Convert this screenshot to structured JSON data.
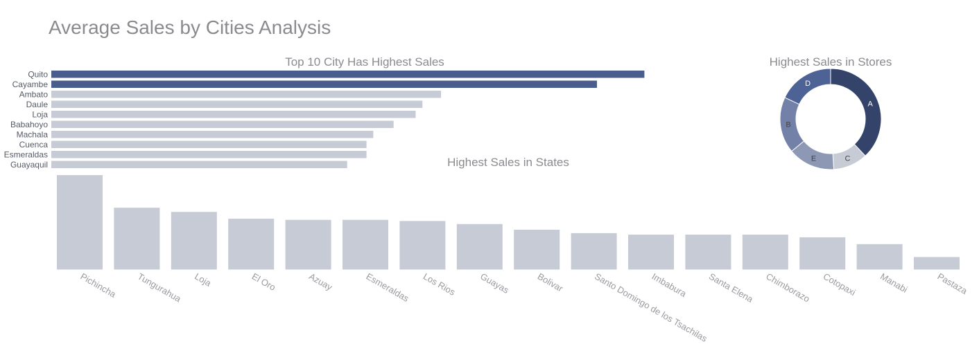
{
  "page": {
    "title": "Average Sales by Cities Analysis"
  },
  "chart_data": [
    {
      "type": "bar",
      "orientation": "horizontal",
      "title": "Top 10 City Has Highest Sales",
      "categories": [
        "Quito",
        "Cayambe",
        "Ambato",
        "Daule",
        "Loja",
        "Babahoyo",
        "Machala",
        "Cuenca",
        "Esmeraldas",
        "Guayaquil"
      ],
      "values": [
        1750,
        1610,
        1150,
        1095,
        1075,
        1010,
        950,
        930,
        930,
        873
      ],
      "xlim": [
        0,
        2500
      ],
      "highlight_count": 2,
      "colors": {
        "highlight": "#4a5e8e",
        "muted": "#c7cbd6"
      },
      "grid": false
    },
    {
      "type": "bar",
      "orientation": "vertical",
      "title": "Highest Sales in States",
      "categories": [
        "Pichincha",
        "Tungurahua",
        "Loja",
        "El Oro",
        "Azuay",
        "Esmeraldas",
        "Los Rios",
        "Guayas",
        "Bolivar",
        "Santo Domingo de los Tsachilas",
        "Imbabura",
        "Santa Elena",
        "Chimborazo",
        "Cotopaxi",
        "Manabi",
        "Pastaza"
      ],
      "values": [
        1245,
        815,
        760,
        670,
        655,
        655,
        640,
        600,
        525,
        480,
        460,
        460,
        460,
        425,
        335,
        165
      ],
      "ylim": [
        0,
        1250
      ],
      "colors": {
        "bar": "#c7cbd6"
      },
      "grid": false
    },
    {
      "type": "pie",
      "variant": "donut",
      "title": "Highest Sales in Stores",
      "labels": [
        "A",
        "C",
        "E",
        "B",
        "D"
      ],
      "values": [
        38,
        11,
        15,
        18,
        18
      ],
      "colors": [
        "#34436a",
        "#c7cbd6",
        "#8c98b4",
        "#7381a8",
        "#4d6396"
      ],
      "label_colors": [
        "#ffffff",
        "#444444",
        "#444444",
        "#444444",
        "#ffffff"
      ],
      "direction": "clockwise",
      "start": "top"
    }
  ]
}
